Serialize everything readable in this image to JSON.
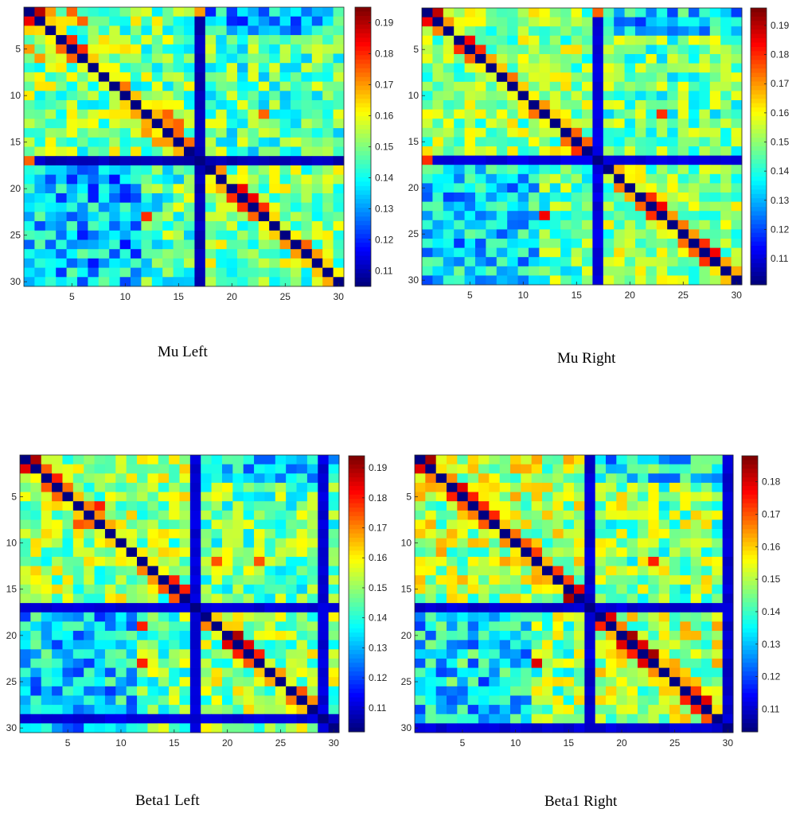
{
  "colormap": "jet",
  "chart_data": [
    {
      "type": "heatmap",
      "title": "Mu Left",
      "size": 30,
      "x_ticks": [
        5,
        10,
        15,
        20,
        25,
        30
      ],
      "y_ticks": [
        5,
        10,
        15,
        20,
        25,
        30
      ],
      "colorbar_ticks": [
        0.11,
        0.12,
        0.13,
        0.14,
        0.15,
        0.16,
        0.17,
        0.18,
        0.19
      ],
      "vmin": 0.105,
      "vmax": 0.195,
      "diagonal": 0.105,
      "low_rows": [
        17
      ],
      "hot_cells": [
        [
          1,
          2,
          0.19
        ],
        [
          1,
          3,
          0.17
        ],
        [
          1,
          5,
          0.175
        ],
        [
          2,
          6,
          0.175
        ],
        [
          4,
          5,
          0.18
        ],
        [
          5,
          6,
          0.18
        ],
        [
          12,
          14,
          0.175
        ],
        [
          13,
          15,
          0.175
        ],
        [
          14,
          15,
          0.175
        ],
        [
          17,
          1,
          0.175
        ],
        [
          20,
          21,
          0.185
        ],
        [
          21,
          22,
          0.185
        ],
        [
          22,
          23,
          0.18
        ],
        [
          23,
          12,
          0.18
        ],
        [
          26,
          27,
          0.175
        ],
        [
          27,
          28,
          0.17
        ]
      ]
    },
    {
      "type": "heatmap",
      "title": "Mu Right",
      "size": 30,
      "x_ticks": [
        5,
        10,
        15,
        20,
        25,
        30
      ],
      "y_ticks": [
        5,
        10,
        15,
        20,
        25,
        30
      ],
      "colorbar_ticks": [
        0.11,
        0.12,
        0.13,
        0.14,
        0.15,
        0.16,
        0.17,
        0.18,
        0.19
      ],
      "vmin": 0.101,
      "vmax": 0.196,
      "diagonal": 0.101,
      "low_rows": [
        17
      ],
      "hot_cells": [
        [
          1,
          2,
          0.19
        ],
        [
          4,
          5,
          0.185
        ],
        [
          5,
          6,
          0.18
        ],
        [
          14,
          15,
          0.175
        ],
        [
          16,
          15,
          0.18
        ],
        [
          17,
          1,
          0.18
        ],
        [
          21,
          22,
          0.18
        ],
        [
          22,
          23,
          0.185
        ],
        [
          23,
          12,
          0.185
        ],
        [
          26,
          27,
          0.18
        ],
        [
          27,
          28,
          0.185
        ],
        [
          28,
          27,
          0.18
        ]
      ]
    },
    {
      "type": "heatmap",
      "title": "Beta1 Left",
      "size": 30,
      "x_ticks": [
        5,
        10,
        15,
        20,
        25,
        30
      ],
      "y_ticks": [
        5,
        10,
        15,
        20,
        25,
        30
      ],
      "colorbar_ticks": [
        0.11,
        0.12,
        0.13,
        0.14,
        0.15,
        0.16,
        0.17,
        0.18,
        0.19
      ],
      "vmin": 0.102,
      "vmax": 0.194,
      "diagonal": 0.102,
      "low_rows": [
        17,
        29
      ],
      "hot_cells": [
        [
          1,
          2,
          0.19
        ],
        [
          3,
          4,
          0.18
        ],
        [
          6,
          8,
          0.18
        ],
        [
          14,
          15,
          0.18
        ],
        [
          15,
          16,
          0.18
        ],
        [
          19,
          12,
          0.18
        ],
        [
          20,
          21,
          0.19
        ],
        [
          21,
          22,
          0.185
        ],
        [
          22,
          23,
          0.18
        ],
        [
          23,
          12,
          0.18
        ],
        [
          26,
          27,
          0.175
        ],
        [
          27,
          28,
          0.17
        ]
      ]
    },
    {
      "type": "heatmap",
      "title": "Beta1 Right",
      "size": 30,
      "x_ticks": [
        5,
        10,
        15,
        20,
        25,
        30
      ],
      "y_ticks": [
        5,
        10,
        15,
        20,
        25,
        30
      ],
      "colorbar_ticks": [
        0.11,
        0.12,
        0.13,
        0.14,
        0.15,
        0.16,
        0.17,
        0.18
      ],
      "vmin": 0.103,
      "vmax": 0.188,
      "diagonal": 0.103,
      "low_rows": [
        17,
        30
      ],
      "hot_cells": [
        [
          1,
          2,
          0.185
        ],
        [
          4,
          5,
          0.18
        ],
        [
          5,
          6,
          0.175
        ],
        [
          16,
          15,
          0.185
        ],
        [
          18,
          19,
          0.18
        ],
        [
          20,
          21,
          0.185
        ],
        [
          21,
          22,
          0.18
        ],
        [
          22,
          23,
          0.185
        ],
        [
          23,
          12,
          0.18
        ],
        [
          27,
          28,
          0.18
        ],
        [
          28,
          27,
          0.175
        ]
      ]
    }
  ]
}
